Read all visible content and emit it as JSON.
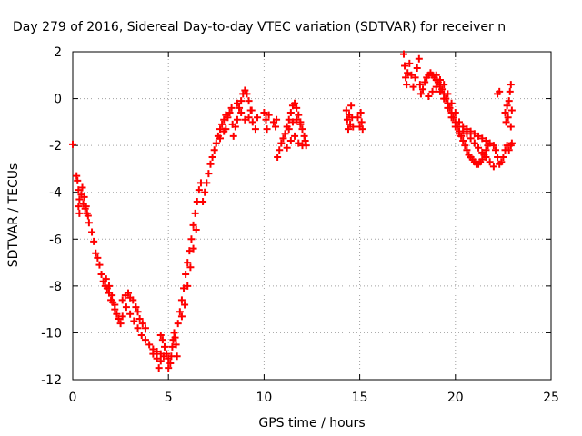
{
  "chart_data": {
    "type": "scatter",
    "title": "Day 279 of 2016, Sidereal Day-to-day VTEC variation (SDTVAR) for receiver n",
    "xlabel": "GPS time / hours",
    "ylabel": "SDTVAR / TECUs",
    "xlim": [
      0,
      25
    ],
    "ylim": [
      -12,
      2
    ],
    "x_ticks": [
      "0",
      "5",
      "10",
      "15",
      "20",
      "25"
    ],
    "y_ticks": [
      "-12",
      "-10",
      "-8",
      "-6",
      "-4",
      "-2",
      "0",
      "2"
    ],
    "grid": true,
    "marker": "+",
    "series": [
      {
        "color": "#ff0000",
        "points": [
          [
            0.0,
            -1.95
          ],
          [
            0.2,
            -3.3
          ],
          [
            0.25,
            -3.5
          ],
          [
            0.3,
            -3.9
          ],
          [
            0.35,
            -4.3
          ],
          [
            0.3,
            -4.6
          ],
          [
            0.35,
            -4.9
          ],
          [
            0.45,
            -4.1
          ],
          [
            0.55,
            -4.5
          ],
          [
            0.65,
            -4.7
          ],
          [
            0.75,
            -4.9
          ],
          [
            0.85,
            -5.3
          ],
          [
            0.5,
            -3.8
          ],
          [
            0.6,
            -4.2
          ],
          [
            0.7,
            -4.6
          ],
          [
            0.8,
            -5.0
          ],
          [
            1.0,
            -5.7
          ],
          [
            1.1,
            -6.1
          ],
          [
            1.2,
            -6.6
          ],
          [
            1.3,
            -6.8
          ],
          [
            1.4,
            -7.1
          ],
          [
            1.5,
            -7.5
          ],
          [
            1.6,
            -7.8
          ],
          [
            1.7,
            -8.0
          ],
          [
            1.8,
            -8.1
          ],
          [
            1.9,
            -8.3
          ],
          [
            2.0,
            -8.6
          ],
          [
            1.75,
            -7.7
          ],
          [
            1.9,
            -8.0
          ],
          [
            2.05,
            -8.4
          ],
          [
            2.2,
            -8.8
          ],
          [
            2.1,
            -8.7
          ],
          [
            2.2,
            -9.0
          ],
          [
            2.3,
            -9.2
          ],
          [
            2.4,
            -9.4
          ],
          [
            2.5,
            -9.6
          ],
          [
            2.6,
            -9.3
          ],
          [
            2.6,
            -8.6
          ],
          [
            2.75,
            -8.4
          ],
          [
            2.9,
            -8.3
          ],
          [
            3.0,
            -8.5
          ],
          [
            3.15,
            -8.6
          ],
          [
            3.3,
            -8.9
          ],
          [
            3.4,
            -9.1
          ],
          [
            3.5,
            -9.4
          ],
          [
            3.65,
            -9.6
          ],
          [
            3.8,
            -9.8
          ],
          [
            2.8,
            -8.9
          ],
          [
            3.0,
            -9.2
          ],
          [
            3.2,
            -9.5
          ],
          [
            3.4,
            -9.8
          ],
          [
            3.6,
            -10.1
          ],
          [
            3.8,
            -10.3
          ],
          [
            4.0,
            -10.5
          ],
          [
            4.2,
            -10.7
          ],
          [
            4.4,
            -10.8
          ],
          [
            4.6,
            -10.9
          ],
          [
            4.75,
            -11.0
          ],
          [
            4.2,
            -10.9
          ],
          [
            4.4,
            -11.1
          ],
          [
            4.5,
            -11.5
          ],
          [
            4.6,
            -11.2
          ],
          [
            4.6,
            -10.1
          ],
          [
            4.7,
            -10.3
          ],
          [
            4.8,
            -10.6
          ],
          [
            4.9,
            -10.9
          ],
          [
            5.0,
            -11.1
          ],
          [
            5.0,
            -11.5
          ],
          [
            5.1,
            -11.3
          ],
          [
            5.15,
            -11.0
          ],
          [
            5.2,
            -10.6
          ],
          [
            5.25,
            -10.3
          ],
          [
            5.3,
            -10.0
          ],
          [
            5.35,
            -10.2
          ],
          [
            5.4,
            -10.5
          ],
          [
            5.45,
            -11.0
          ],
          [
            5.5,
            -9.6
          ],
          [
            5.6,
            -9.1
          ],
          [
            5.7,
            -8.6
          ],
          [
            5.8,
            -8.1
          ],
          [
            5.9,
            -7.5
          ],
          [
            6.0,
            -7.0
          ],
          [
            6.1,
            -6.5
          ],
          [
            6.2,
            -6.0
          ],
          [
            6.3,
            -5.4
          ],
          [
            6.4,
            -4.9
          ],
          [
            6.5,
            -4.4
          ],
          [
            6.6,
            -3.9
          ],
          [
            5.7,
            -9.3
          ],
          [
            5.85,
            -8.8
          ],
          [
            6.0,
            -8.0
          ],
          [
            6.15,
            -7.2
          ],
          [
            6.3,
            -6.4
          ],
          [
            6.45,
            -5.6
          ],
          [
            6.7,
            -3.6
          ],
          [
            6.8,
            -4.4
          ],
          [
            6.9,
            -4.0
          ],
          [
            7.0,
            -3.6
          ],
          [
            7.1,
            -3.2
          ],
          [
            7.2,
            -2.8
          ],
          [
            7.3,
            -2.5
          ],
          [
            7.4,
            -2.2
          ],
          [
            7.5,
            -1.9
          ],
          [
            7.6,
            -1.6
          ],
          [
            7.7,
            -1.3
          ],
          [
            7.8,
            -1.1
          ],
          [
            7.9,
            -0.9
          ],
          [
            8.0,
            -0.7
          ],
          [
            8.1,
            -0.8
          ],
          [
            8.2,
            -0.6
          ],
          [
            8.3,
            -0.4
          ],
          [
            7.7,
            -1.7
          ],
          [
            7.9,
            -1.4
          ],
          [
            8.0,
            -1.3
          ],
          [
            8.35,
            -1.1
          ],
          [
            8.4,
            -1.6
          ],
          [
            8.5,
            -1.2
          ],
          [
            8.6,
            -0.9
          ],
          [
            8.7,
            -0.4
          ],
          [
            8.8,
            -0.1
          ],
          [
            8.9,
            0.2
          ],
          [
            9.0,
            0.35
          ],
          [
            9.1,
            0.2
          ],
          [
            9.2,
            -0.1
          ],
          [
            9.3,
            -0.5
          ],
          [
            8.6,
            -0.2
          ],
          [
            8.8,
            -0.6
          ],
          [
            9.0,
            -0.9
          ],
          [
            9.2,
            -0.8
          ],
          [
            9.35,
            -0.5
          ],
          [
            9.4,
            -1.0
          ],
          [
            9.55,
            -1.3
          ],
          [
            9.65,
            -0.8
          ],
          [
            10.0,
            -0.6
          ],
          [
            10.1,
            -0.9
          ],
          [
            10.15,
            -1.3
          ],
          [
            10.25,
            -0.7
          ],
          [
            10.5,
            -1.0
          ],
          [
            10.6,
            -1.2
          ],
          [
            10.65,
            -0.9
          ],
          [
            10.7,
            -2.5
          ],
          [
            10.8,
            -2.2
          ],
          [
            10.9,
            -1.9
          ],
          [
            11.0,
            -1.7
          ],
          [
            11.1,
            -1.5
          ],
          [
            11.2,
            -1.2
          ],
          [
            11.3,
            -0.9
          ],
          [
            11.4,
            -0.6
          ],
          [
            11.5,
            -0.3
          ],
          [
            11.6,
            -0.2
          ],
          [
            11.7,
            -0.4
          ],
          [
            11.8,
            -0.7
          ],
          [
            11.9,
            -1.0
          ],
          [
            12.0,
            -1.3
          ],
          [
            12.1,
            -1.6
          ],
          [
            12.15,
            -1.8
          ],
          [
            12.2,
            -2.0
          ],
          [
            11.2,
            -2.1
          ],
          [
            11.4,
            -1.8
          ],
          [
            11.6,
            -1.6
          ],
          [
            11.8,
            -1.9
          ],
          [
            12.0,
            -2.0
          ],
          [
            11.3,
            -1.3
          ],
          [
            11.5,
            -1.0
          ],
          [
            11.7,
            -0.9
          ],
          [
            11.9,
            -1.1
          ],
          [
            14.3,
            -0.5
          ],
          [
            14.35,
            -0.9
          ],
          [
            14.4,
            -1.3
          ],
          [
            14.45,
            -0.7
          ],
          [
            14.5,
            -1.1
          ],
          [
            14.55,
            -0.3
          ],
          [
            14.6,
            -0.8
          ],
          [
            14.65,
            -1.2
          ],
          [
            14.9,
            -0.8
          ],
          [
            15.0,
            -1.2
          ],
          [
            15.05,
            -0.6
          ],
          [
            15.1,
            -1.0
          ],
          [
            15.15,
            -1.3
          ],
          [
            17.3,
            1.9
          ],
          [
            17.35,
            1.4
          ],
          [
            17.4,
            0.9
          ],
          [
            17.45,
            0.6
          ],
          [
            17.5,
            1.1
          ],
          [
            17.6,
            1.5
          ],
          [
            17.7,
            1.0
          ],
          [
            17.8,
            0.5
          ],
          [
            17.9,
            0.9
          ],
          [
            18.0,
            1.3
          ],
          [
            18.1,
            1.7
          ],
          [
            18.15,
            0.6
          ],
          [
            18.2,
            0.2
          ],
          [
            18.3,
            0.4
          ],
          [
            18.4,
            0.7
          ],
          [
            18.5,
            0.9
          ],
          [
            18.6,
            1.0
          ],
          [
            18.7,
            1.1
          ],
          [
            18.8,
            1.0
          ],
          [
            18.9,
            0.9
          ],
          [
            19.0,
            0.8
          ],
          [
            19.1,
            0.7
          ],
          [
            19.2,
            0.6
          ],
          [
            19.3,
            0.4
          ],
          [
            19.4,
            0.2
          ],
          [
            19.5,
            0.0
          ],
          [
            19.6,
            -0.2
          ],
          [
            19.7,
            -0.4
          ],
          [
            19.8,
            -0.6
          ],
          [
            19.9,
            -0.8
          ],
          [
            20.0,
            -1.0
          ],
          [
            20.1,
            -1.2
          ],
          [
            20.2,
            -1.4
          ],
          [
            20.3,
            -1.6
          ],
          [
            20.4,
            -1.8
          ],
          [
            20.5,
            -2.0
          ],
          [
            20.6,
            -2.2
          ],
          [
            20.7,
            -2.4
          ],
          [
            20.8,
            -2.5
          ],
          [
            20.9,
            -2.6
          ],
          [
            21.0,
            -2.7
          ],
          [
            21.1,
            -2.8
          ],
          [
            21.2,
            -2.8
          ],
          [
            21.3,
            -2.7
          ],
          [
            21.4,
            -2.6
          ],
          [
            21.5,
            -2.4
          ],
          [
            21.6,
            -2.2
          ],
          [
            21.7,
            -2.0
          ],
          [
            18.6,
            0.1
          ],
          [
            18.8,
            0.3
          ],
          [
            19.0,
            0.5
          ],
          [
            19.2,
            0.3
          ],
          [
            19.4,
            0.0
          ],
          [
            19.6,
            -0.4
          ],
          [
            19.8,
            -0.8
          ],
          [
            20.0,
            -1.2
          ],
          [
            20.2,
            -1.5
          ],
          [
            20.4,
            -1.4
          ],
          [
            20.6,
            -1.5
          ],
          [
            20.8,
            -1.7
          ],
          [
            21.0,
            -1.9
          ],
          [
            21.2,
            -2.1
          ],
          [
            21.4,
            -2.3
          ],
          [
            21.6,
            -2.5
          ],
          [
            21.8,
            -2.7
          ],
          [
            22.0,
            -2.9
          ],
          [
            19.0,
            1.0
          ],
          [
            19.2,
            0.8
          ],
          [
            19.4,
            0.6
          ],
          [
            19.6,
            0.2
          ],
          [
            19.8,
            -0.2
          ],
          [
            20.0,
            -0.6
          ],
          [
            20.2,
            -1.0
          ],
          [
            20.4,
            -1.2
          ],
          [
            20.6,
            -1.3
          ],
          [
            20.8,
            -1.4
          ],
          [
            21.0,
            -1.5
          ],
          [
            21.2,
            -1.6
          ],
          [
            21.4,
            -1.7
          ],
          [
            21.6,
            -1.8
          ],
          [
            21.8,
            -1.9
          ],
          [
            22.0,
            -2.0
          ],
          [
            22.1,
            -2.2
          ],
          [
            22.2,
            -2.5
          ],
          [
            22.3,
            -2.8
          ],
          [
            22.2,
            0.2
          ],
          [
            22.3,
            0.3
          ],
          [
            22.4,
            -2.7
          ],
          [
            22.5,
            -2.5
          ],
          [
            22.6,
            -2.2
          ],
          [
            22.7,
            -2.0
          ],
          [
            22.8,
            -2.2
          ],
          [
            22.9,
            -2.0
          ],
          [
            22.95,
            -1.9
          ],
          [
            22.6,
            -0.6
          ],
          [
            22.65,
            -1.0
          ],
          [
            22.7,
            -0.3
          ],
          [
            22.75,
            -0.8
          ],
          [
            22.8,
            -0.1
          ],
          [
            22.85,
            0.3
          ],
          [
            22.9,
            0.6
          ],
          [
            22.95,
            -0.5
          ],
          [
            22.9,
            -1.2
          ]
        ]
      }
    ]
  }
}
